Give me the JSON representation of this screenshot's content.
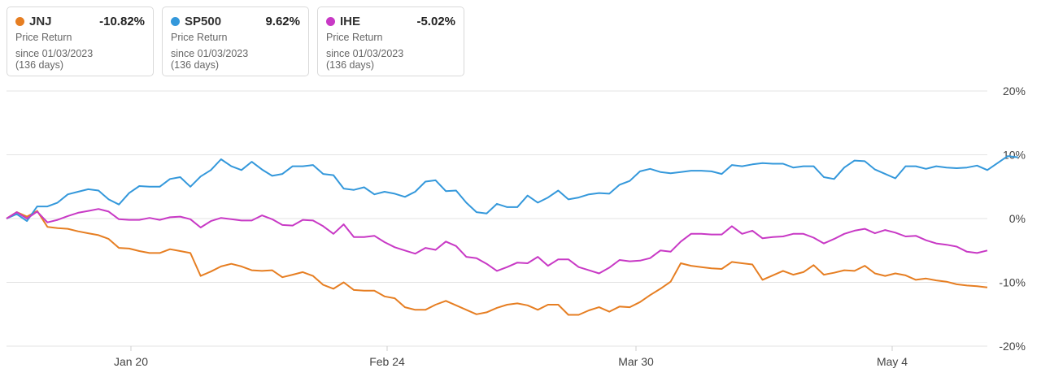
{
  "cards": [
    {
      "ticker": "JNJ",
      "value": "-10.82%",
      "label": "Price Return",
      "since": "since 01/03/2023",
      "days": "(136 days)",
      "color": "#E67E22"
    },
    {
      "ticker": "SP500",
      "value": "9.62%",
      "label": "Price Return",
      "since": "since 01/03/2023",
      "days": "(136 days)",
      "color": "#3498DB"
    },
    {
      "ticker": "IHE",
      "value": "-5.02%",
      "label": "Price Return",
      "since": "since 01/03/2023",
      "days": "(136 days)",
      "color": "#C839C5"
    }
  ],
  "chart_data": {
    "type": "line",
    "title": "",
    "xlabel": "",
    "ylabel": "",
    "x_ticks": [
      "Jan 20",
      "Feb 24",
      "Mar 30",
      "May 4"
    ],
    "y_ticks": [
      "20%",
      "10%",
      "0%",
      "-10%",
      "-20%"
    ],
    "ylim": [
      -20,
      20
    ],
    "grid": true,
    "x_start": "2023-01-03",
    "series": [
      {
        "name": "JNJ",
        "color": "#E67E22",
        "values": [
          0,
          1.0,
          0.3,
          1.2,
          -1.3,
          -1.5,
          -1.6,
          -2.0,
          -2.3,
          -2.6,
          -3.2,
          -4.6,
          -4.7,
          -5.1,
          -5.4,
          -5.4,
          -4.8,
          -5.1,
          -5.4,
          -9.0,
          -8.3,
          -7.5,
          -7.1,
          -7.5,
          -8.1,
          -8.2,
          -8.1,
          -9.2,
          -8.8,
          -8.4,
          -9.0,
          -10.4,
          -11.0,
          -10.0,
          -11.2,
          -11.3,
          -11.3,
          -12.2,
          -12.5,
          -13.9,
          -14.3,
          -14.3,
          -13.5,
          -12.9,
          -13.6,
          -14.3,
          -15.0,
          -14.7,
          -14.0,
          -13.5,
          -13.3,
          -13.6,
          -14.3,
          -13.5,
          -13.5,
          -15.1,
          -15.1,
          -14.4,
          -13.9,
          -14.6,
          -13.8,
          -13.9,
          -13.1,
          -12.0,
          -11.0,
          -9.9,
          -7.0,
          -7.4,
          -7.6,
          -7.8,
          -7.9,
          -6.8,
          -7.0,
          -7.2,
          -9.6,
          -8.9,
          -8.2,
          -8.8,
          -8.4,
          -7.3,
          -8.8,
          -8.5,
          -8.1,
          -8.2,
          -7.4,
          -8.6,
          -9.0,
          -8.6,
          -8.9,
          -9.6,
          -9.4,
          -9.7,
          -9.9,
          -10.3,
          -10.5,
          -10.6,
          -10.8
        ]
      },
      {
        "name": "SP500",
        "color": "#3498DB",
        "values": [
          0,
          0.7,
          -0.4,
          1.9,
          1.9,
          2.5,
          3.8,
          4.2,
          4.6,
          4.4,
          3.0,
          2.2,
          4.0,
          5.1,
          5.0,
          5.0,
          6.2,
          6.5,
          5.0,
          6.6,
          7.6,
          9.3,
          8.2,
          7.6,
          8.9,
          7.7,
          6.7,
          7.0,
          8.2,
          8.2,
          8.4,
          7.0,
          6.8,
          4.7,
          4.5,
          4.9,
          3.8,
          4.2,
          3.9,
          3.4,
          4.2,
          5.8,
          6.0,
          4.3,
          4.4,
          2.5,
          1.0,
          0.8,
          2.3,
          1.8,
          1.8,
          3.6,
          2.5,
          3.3,
          4.4,
          3.0,
          3.3,
          3.8,
          4.0,
          3.9,
          5.3,
          5.9,
          7.4,
          7.8,
          7.3,
          7.1,
          7.3,
          7.5,
          7.5,
          7.4,
          7.0,
          8.4,
          8.2,
          8.5,
          8.7,
          8.6,
          8.6,
          8.0,
          8.2,
          8.2,
          6.5,
          6.2,
          8.0,
          9.1,
          9.0,
          7.7,
          7.0,
          6.3,
          8.2,
          8.2,
          7.8,
          8.2,
          8.0,
          7.9,
          8.0,
          8.3,
          7.6,
          8.7,
          9.8,
          9.6
        ]
      },
      {
        "name": "IHE",
        "color": "#C839C5",
        "values": [
          0,
          1.0,
          0.0,
          1.1,
          -0.6,
          -0.2,
          0.4,
          0.9,
          1.2,
          1.5,
          1.1,
          -0.1,
          -0.2,
          -0.2,
          0.1,
          -0.2,
          0.2,
          0.3,
          -0.1,
          -1.4,
          -0.4,
          0.1,
          -0.1,
          -0.3,
          -0.3,
          0.5,
          -0.1,
          -1.0,
          -1.1,
          -0.2,
          -0.3,
          -1.2,
          -2.4,
          -0.9,
          -2.9,
          -2.9,
          -2.7,
          -3.7,
          -4.5,
          -5.0,
          -5.5,
          -4.6,
          -4.9,
          -3.6,
          -4.3,
          -6.0,
          -6.2,
          -7.1,
          -8.2,
          -7.6,
          -6.9,
          -7.0,
          -6.0,
          -7.4,
          -6.4,
          -6.4,
          -7.6,
          -8.1,
          -8.6,
          -7.7,
          -6.5,
          -6.7,
          -6.6,
          -6.2,
          -5.0,
          -5.2,
          -3.6,
          -2.4,
          -2.4,
          -2.5,
          -2.5,
          -1.2,
          -2.4,
          -1.9,
          -3.1,
          -2.9,
          -2.8,
          -2.4,
          -2.4,
          -3.0,
          -3.9,
          -3.2,
          -2.4,
          -1.9,
          -1.6,
          -2.3,
          -1.8,
          -2.2,
          -2.8,
          -2.7,
          -3.4,
          -3.9,
          -4.1,
          -4.4,
          -5.2,
          -5.4,
          -5.0
        ]
      }
    ]
  }
}
